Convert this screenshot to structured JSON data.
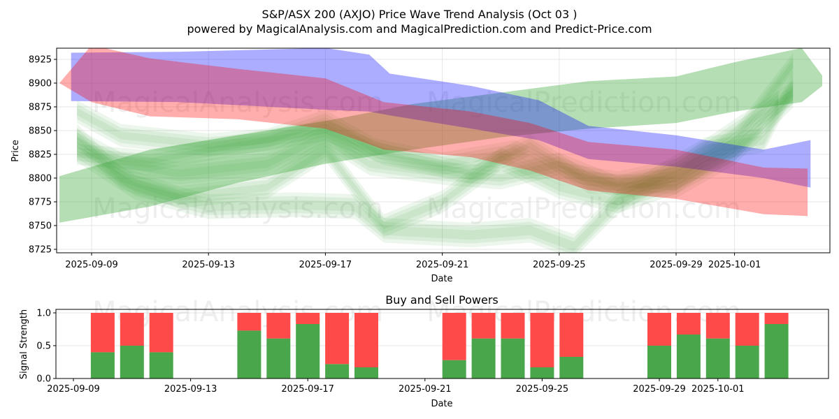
{
  "title_line1": "S&P/ASX 200 (AXJO) Price Wave Trend Analysis (Oct 03 )",
  "title_line2": "powered by MagicalAnalysis.com and MagicalPrediction.com and Predict-Price.com",
  "watermarks": [
    "MagicalAnalysis.com",
    "MagicalPrediction.com"
  ],
  "colors": {
    "blue_band": "#0000ff",
    "red_band": "#ff0000",
    "green_band": "#2ca02c",
    "buy": "#4aa64a",
    "sell": "#ff4a4a"
  },
  "chart_data": [
    {
      "type": "area",
      "name": "price-wave-trend",
      "xlabel": "Date",
      "ylabel": "Price",
      "ylim": [
        8720,
        8937
      ],
      "xlim": [
        "2025-09-07.8",
        "2025-10-04.3"
      ],
      "grid": true,
      "y_ticks": [
        8725,
        8750,
        8775,
        8800,
        8825,
        8850,
        8875,
        8900,
        8925
      ],
      "x_ticks": [
        "2025-09-09",
        "2025-09-13",
        "2025-09-17",
        "2025-09-21",
        "2025-09-25",
        "2025-09-29",
        "2025-10-01"
      ],
      "series": [
        {
          "name": "blue-band",
          "color": "#0000ff",
          "opacity": 0.32,
          "x": [
            "2025-09-08.3",
            "2025-09-12",
            "2025-09-17",
            "2025-09-18.5",
            "2025-09-19.2",
            "2025-09-22",
            "2025-09-24.3",
            "2025-09-26",
            "2025-09-29",
            "2025-10-02",
            "2025-10-03.6"
          ],
          "upper": [
            8932,
            8933,
            8937,
            8930,
            8910,
            8897,
            8882,
            8855,
            8845,
            8830,
            8840
          ],
          "lower": [
            8881,
            8880,
            8872,
            8870,
            8866,
            8852,
            8840,
            8820,
            8812,
            8800,
            8790
          ]
        },
        {
          "name": "red-band",
          "color": "#ff0000",
          "opacity": 0.32,
          "x": [
            "2025-09-07.9",
            "2025-09-09",
            "2025-09-11",
            "2025-09-14",
            "2025-09-17",
            "2025-09-19",
            "2025-09-22",
            "2025-09-24",
            "2025-09-26",
            "2025-09-29",
            "2025-10-02",
            "2025-10-03.5"
          ],
          "upper": [
            8900,
            8940,
            8926,
            8915,
            8905,
            8880,
            8870,
            8858,
            8838,
            8830,
            8811,
            8810
          ],
          "lower": [
            8900,
            8880,
            8865,
            8862,
            8852,
            8830,
            8822,
            8808,
            8787,
            8778,
            8762,
            8760
          ]
        },
        {
          "name": "green-band-main",
          "color": "#2ca02c",
          "opacity": 0.35,
          "x": [
            "2025-09-07.9",
            "2025-09-11",
            "2025-09-14",
            "2025-09-17",
            "2025-09-20",
            "2025-09-23",
            "2025-09-26",
            "2025-09-29",
            "2025-10-01",
            "2025-10-03.3",
            "2025-10-04"
          ],
          "upper": [
            8802,
            8830,
            8845,
            8860,
            8878,
            8890,
            8902,
            8907,
            8922,
            8937,
            8908
          ],
          "lower": [
            8753,
            8770,
            8795,
            8815,
            8830,
            8843,
            8852,
            8858,
            8870,
            8880,
            8897
          ]
        }
      ],
      "faint_waves": [
        {
          "x": [
            "2025-09-08.5",
            "2025-09-10",
            "2025-09-12",
            "2025-09-15",
            "2025-09-17",
            "2025-09-18.5",
            "2025-09-21",
            "2025-09-23",
            "2025-09-25",
            "2025-09-27",
            "2025-09-29",
            "2025-10-01",
            "2025-10-02.5"
          ],
          "mid": [
            8840,
            8815,
            8805,
            8815,
            8845,
            8815,
            8805,
            8800,
            8815,
            8790,
            8800,
            8830,
            8880
          ],
          "half": 8
        },
        {
          "x": [
            "2025-09-08.5",
            "2025-09-10",
            "2025-09-12",
            "2025-09-15",
            "2025-09-17",
            "2025-09-19",
            "2025-09-21",
            "2025-09-23",
            "2025-09-25",
            "2025-09-27",
            "2025-09-29",
            "2025-10-01",
            "2025-10-03"
          ],
          "mid": [
            8845,
            8800,
            8780,
            8790,
            8830,
            8750,
            8775,
            8820,
            8790,
            8775,
            8795,
            8840,
            8920
          ],
          "half": 8
        },
        {
          "x": [
            "2025-09-08.5",
            "2025-09-10.5",
            "2025-09-13",
            "2025-09-16",
            "2025-09-18",
            "2025-09-19",
            "2025-09-22",
            "2025-09-24",
            "2025-09-25.5",
            "2025-09-27",
            "2025-09-30",
            "2025-10-02",
            "2025-10-03"
          ],
          "mid": [
            8830,
            8790,
            8770,
            8772,
            8770,
            8745,
            8740,
            8745,
            8728,
            8775,
            8830,
            8840,
            8900
          ],
          "half": 9
        },
        {
          "x": [
            "2025-09-08.5",
            "2025-09-10",
            "2025-09-13",
            "2025-09-15",
            "2025-09-17",
            "2025-09-18.7",
            "2025-09-21",
            "2025-09-23.5",
            "2025-09-25",
            "2025-09-27",
            "2025-09-29",
            "2025-10-01",
            "2025-10-03"
          ],
          "mid": [
            8870,
            8845,
            8835,
            8840,
            8860,
            8830,
            8815,
            8828,
            8805,
            8795,
            8808,
            8850,
            8890
          ],
          "half": 8
        },
        {
          "x": [
            "2025-09-08.5",
            "2025-09-11",
            "2025-09-14",
            "2025-09-17",
            "2025-09-19",
            "2025-09-22",
            "2025-09-24",
            "2025-09-26",
            "2025-09-29",
            "2025-10-01",
            "2025-10-03"
          ],
          "mid": [
            8825,
            8818,
            8835,
            8850,
            8825,
            8805,
            8835,
            8795,
            8790,
            8825,
            8885
          ],
          "half": 7
        }
      ]
    },
    {
      "type": "bar",
      "name": "buy-and-sell-powers",
      "title": "Buy and Sell Powers",
      "xlabel": "Date",
      "ylabel": "Signal Strength",
      "ylim": [
        0,
        1.05
      ],
      "y_ticks": [
        "0.0",
        "0.5",
        "1.0"
      ],
      "x_ticks": [
        "2025-09-09",
        "2025-09-13",
        "2025-09-17",
        "2025-09-21",
        "2025-09-25",
        "2025-09-29",
        "2025-10-01"
      ],
      "categories": [
        "2025-09-10",
        "2025-09-11",
        "2025-09-12",
        "2025-09-15",
        "2025-09-16",
        "2025-09-17",
        "2025-09-18",
        "2025-09-19",
        "2025-09-22",
        "2025-09-23",
        "2025-09-24",
        "2025-09-25",
        "2025-09-26",
        "2025-09-29",
        "2025-09-30",
        "2025-10-01",
        "2025-10-02",
        "2025-10-03"
      ],
      "series": [
        {
          "name": "Buy",
          "color": "#4aa64a",
          "values": [
            0.4,
            0.5,
            0.4,
            0.73,
            0.61,
            0.83,
            0.22,
            0.17,
            0.28,
            0.61,
            0.61,
            0.17,
            0.33,
            0.5,
            0.67,
            0.61,
            0.5,
            0.83
          ]
        },
        {
          "name": "Sell",
          "color": "#ff4a4a",
          "values": [
            0.6,
            0.5,
            0.6,
            0.27,
            0.39,
            0.17,
            0.78,
            0.83,
            0.72,
            0.39,
            0.39,
            0.83,
            0.67,
            0.5,
            0.33,
            0.39,
            0.5,
            0.17
          ]
        }
      ]
    }
  ]
}
